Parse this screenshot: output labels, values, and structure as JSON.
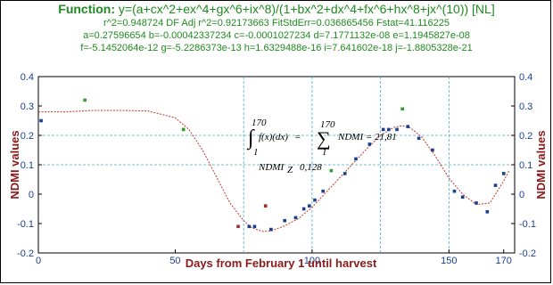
{
  "header": {
    "function_label": "Function:",
    "function_expr": "y=(a+cx^2+ex^4+gx^6+ix^8)/(1+bx^2+dx^4+fx^6+hx^8+jx^(10)) [NL]",
    "stats_line1": "r^2=0.948724  DF Adj r^2=0.92173663  FitStdErr=0.036865456  Fstat=41.116225",
    "stats_line2": "a=0.27596654 b=-0.00042337234 c=-0.0001027234 d=7.1771132e-08 e=1.1945827e-08",
    "stats_line3": "f=-5.1452064e-12 g=-5.2286373e-13 h=1.6329488e-16 i=7.641602e-18 j=-1.8805328e-21"
  },
  "annotation": {
    "integral_upper": "170",
    "integral_lower": "1",
    "integral_body": "∫ f(x)(dx) = ∑ NDMI = 21,81",
    "integrand": "f(x)(dx)",
    "sum_upper": "170",
    "sum_lower": "1",
    "sum_body": "NDMI = 21,81",
    "ndmi_z_label": "NDMI",
    "ndmi_z_sub": "Z",
    "ndmi_z_value": "0,128"
  },
  "chart_data": {
    "type": "scatter",
    "xlabel": "Days from February 1 until harvest",
    "ylabel_left": "NDMI values",
    "ylabel_right": "NDMI values",
    "xlim": [
      0,
      174
    ],
    "ylim": [
      -0.2,
      0.4
    ],
    "x_ticks": [
      0,
      50,
      100,
      150,
      170
    ],
    "y_ticks": [
      -0.2,
      -0.1,
      0,
      0.1,
      0.2,
      0.3,
      0.4
    ],
    "y_tick_labels": [
      "-0.2",
      "-0.1",
      "0",
      "0.1",
      "0.2",
      "0.3",
      "0.4"
    ],
    "y_tick_labels_right": [
      "-0.2",
      "-0.1",
      "0",
      "0.1",
      "0.2",
      "0.3",
      "0.4"
    ],
    "grid_x": [
      75,
      100,
      125,
      150
    ],
    "grid_y": [
      0.1,
      0.2
    ],
    "colors": {
      "curve": "#c0392b",
      "point_in": "#1a3f8f",
      "point_out_green": "#2e9e2e",
      "point_out_red": "#a52a2a",
      "axis_label": "#8b1a1a",
      "header": "#1f8a1f",
      "grid": "#4aa8c8"
    },
    "series": [
      {
        "points": [
          {
            "x": 1,
            "y": 0.25,
            "c": "in"
          },
          {
            "x": 17,
            "y": 0.32,
            "c": "green"
          },
          {
            "x": 53,
            "y": 0.22,
            "c": "green"
          },
          {
            "x": 73,
            "y": -0.11,
            "c": "red"
          },
          {
            "x": 77,
            "y": -0.11,
            "c": "in"
          },
          {
            "x": 79,
            "y": -0.11,
            "c": "in"
          },
          {
            "x": 83,
            "y": -0.04,
            "c": "red"
          },
          {
            "x": 85,
            "y": -0.12,
            "c": "in"
          },
          {
            "x": 90,
            "y": -0.09,
            "c": "in"
          },
          {
            "x": 94,
            "y": -0.08,
            "c": "in"
          },
          {
            "x": 97,
            "y": -0.05,
            "c": "in"
          },
          {
            "x": 99,
            "y": -0.04,
            "c": "in"
          },
          {
            "x": 101,
            "y": -0.02,
            "c": "in"
          },
          {
            "x": 104,
            "y": 0.01,
            "c": "in"
          },
          {
            "x": 107,
            "y": 0.08,
            "c": "green"
          },
          {
            "x": 112,
            "y": 0.07,
            "c": "in"
          },
          {
            "x": 116,
            "y": 0.12,
            "c": "in"
          },
          {
            "x": 121,
            "y": 0.17,
            "c": "in"
          },
          {
            "x": 126,
            "y": 0.22,
            "c": "in"
          },
          {
            "x": 128,
            "y": 0.22,
            "c": "in"
          },
          {
            "x": 131,
            "y": 0.22,
            "c": "in"
          },
          {
            "x": 133,
            "y": 0.29,
            "c": "green"
          },
          {
            "x": 135,
            "y": 0.23,
            "c": "in"
          },
          {
            "x": 139,
            "y": 0.19,
            "c": "in"
          },
          {
            "x": 144,
            "y": 0.15,
            "c": "in"
          },
          {
            "x": 152,
            "y": 0.01,
            "c": "in"
          },
          {
            "x": 155,
            "y": -0.01,
            "c": "in"
          },
          {
            "x": 160,
            "y": -0.03,
            "c": "in"
          },
          {
            "x": 164,
            "y": -0.06,
            "c": "in"
          },
          {
            "x": 167,
            "y": 0.03,
            "c": "in"
          },
          {
            "x": 170,
            "y": 0.07,
            "c": "in"
          }
        ]
      },
      {
        "type": "line",
        "x": [
          0,
          10,
          20,
          30,
          40,
          50,
          55,
          60,
          65,
          70,
          75,
          78,
          82,
          85,
          90,
          95,
          100,
          105,
          110,
          115,
          120,
          125,
          130,
          133,
          136,
          140,
          145,
          150,
          155,
          160,
          165,
          170,
          172
        ],
        "y": [
          0.28,
          0.28,
          0.285,
          0.285,
          0.283,
          0.26,
          0.22,
          0.15,
          0.06,
          -0.03,
          -0.09,
          -0.115,
          -0.127,
          -0.125,
          -0.108,
          -0.083,
          -0.045,
          0.005,
          0.055,
          0.105,
          0.155,
          0.2,
          0.228,
          0.233,
          0.225,
          0.195,
          0.13,
          0.055,
          0.0,
          -0.035,
          -0.03,
          0.045,
          0.08
        ]
      }
    ]
  }
}
